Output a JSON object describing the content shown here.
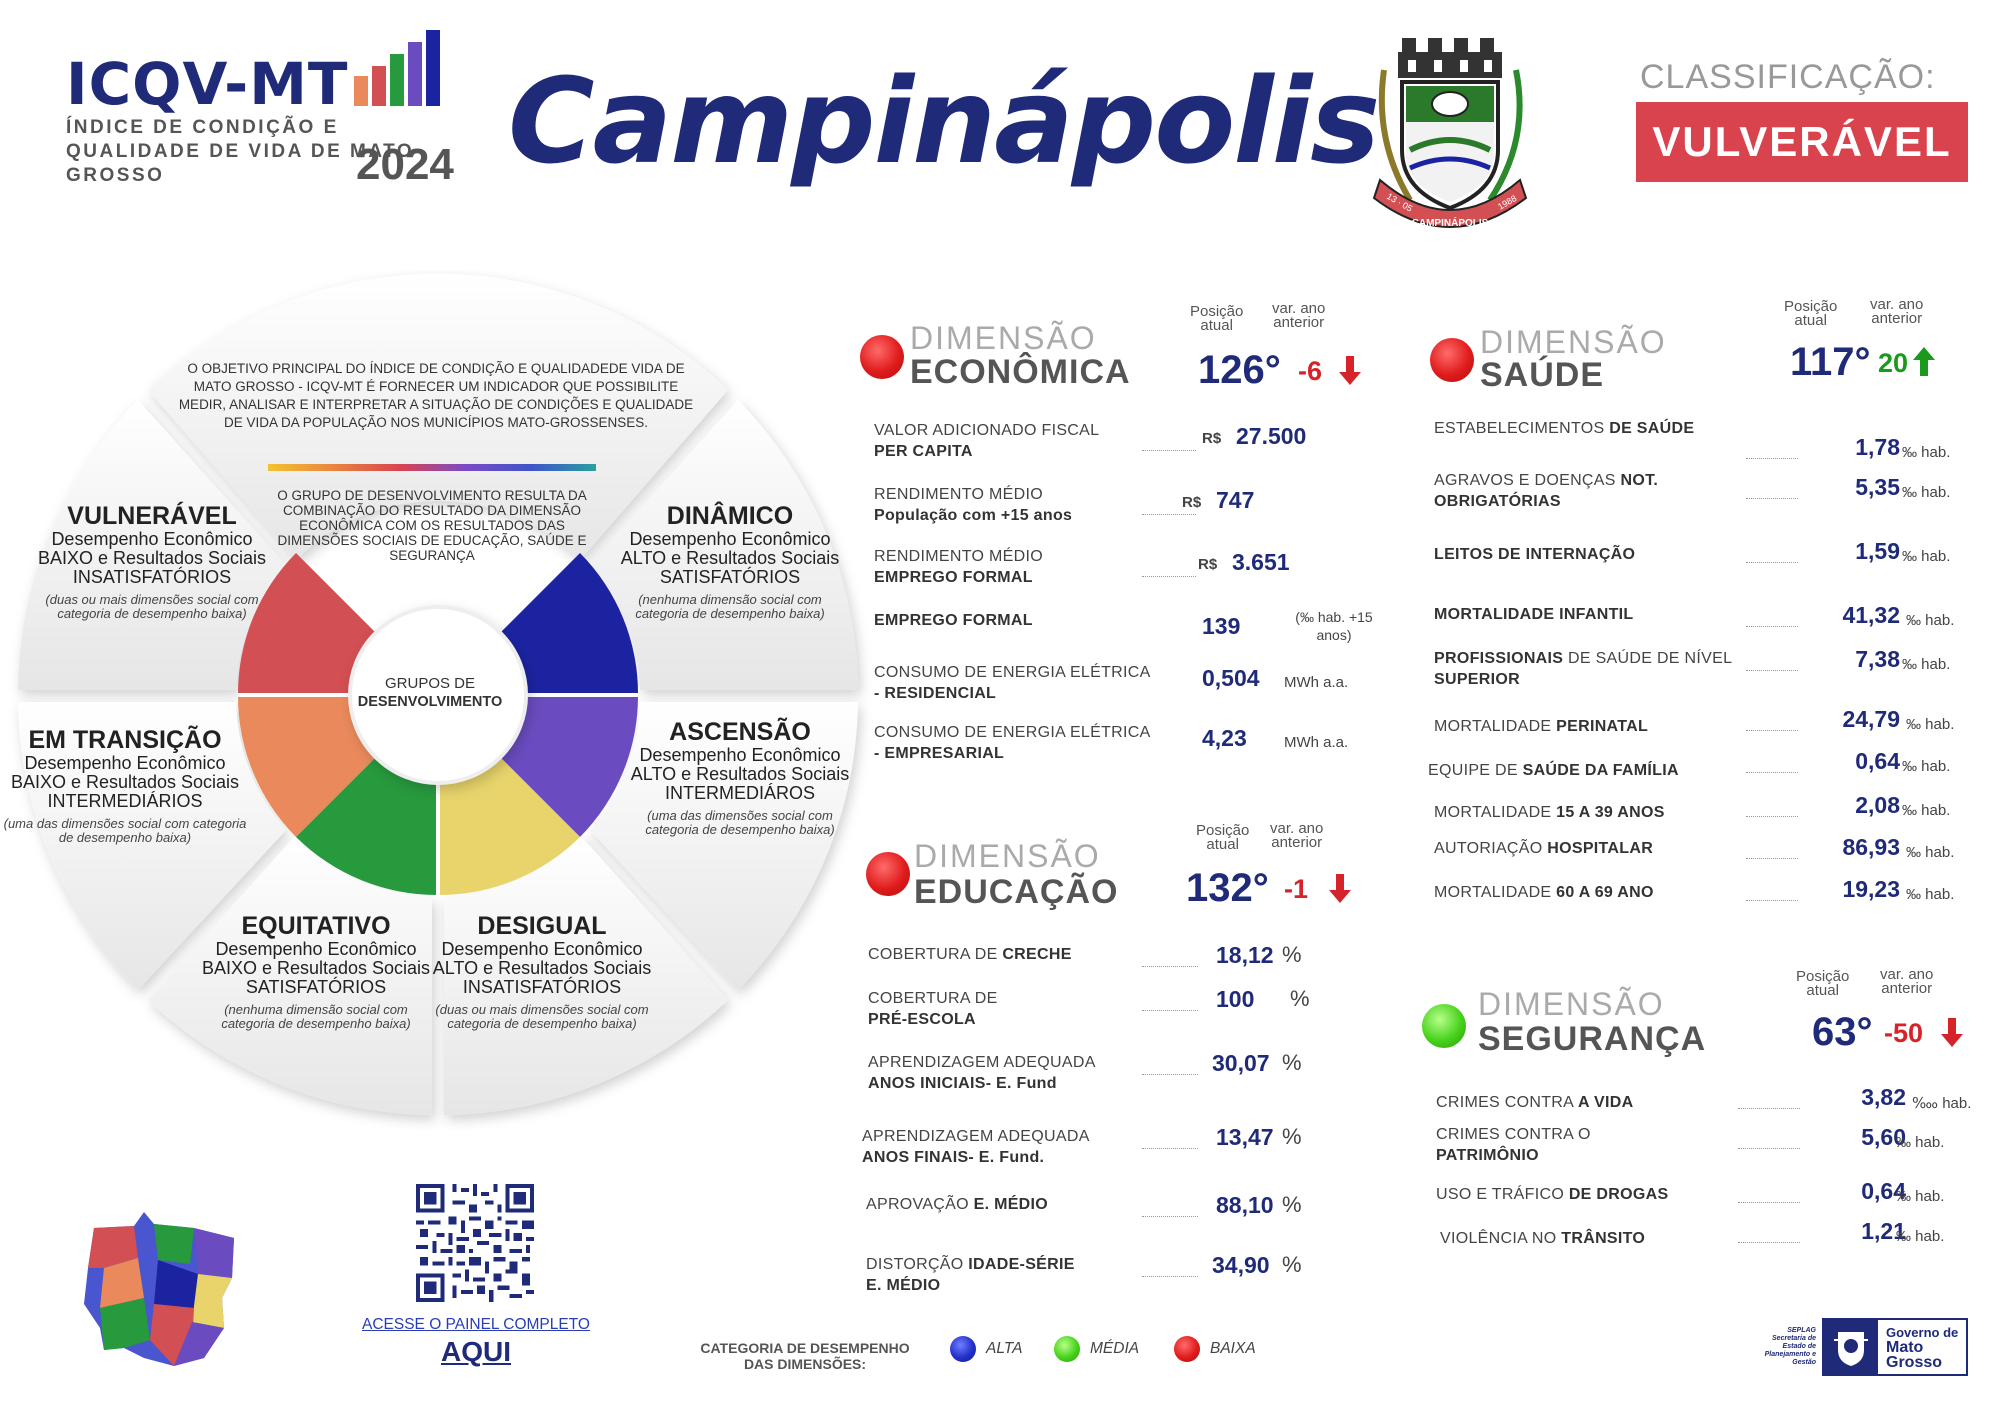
{
  "header": {
    "brand": "ICQV-MT",
    "subtitle": "ÍNDICE DE CONDIÇÃO E QUALIDADE DE VIDA DE MATO GROSSO",
    "year": "2024",
    "city": "Campinápolis",
    "crest_text": "CAMPINÁPOLIS",
    "crest_date_left": "13 · 05",
    "crest_date_right": "1988",
    "classification_label": "CLASSIFICAÇÃO:",
    "classification_value": "VULVERÁVEL",
    "colors": {
      "navy": "#1f2a78",
      "classification_bg": "#d9434e"
    }
  },
  "wheel": {
    "objective": "O OBJETIVO PRINCIPAL DO ÍNDICE DE CONDIÇÃO E QUALIDADEDE VIDA DE MATO GROSSO - ICQV-MT É FORNECER UM INDICADOR QUE POSSIBILITE MEDIR, ANALISAR E INTERPRETAR A SITUAÇÃO DE CONDIÇÕES E QUALIDADE DE VIDA DA POPULAÇÃO NOS MUNICÍPIOS MATO-GROSSENSES.",
    "group_explanation": "O GRUPO DE DESENVOLVIMENTO RESULTA DA COMBINAÇÃO DO RESULTADO DA DIMENSÃO ECONÔMICA COM OS RESULTADOS DAS DIMENSÕES SOCIAIS DE EDUCAÇÃO, SAÚDE E SEGURANÇA",
    "center_line1": "GRUPOS DE",
    "center_line2": "DESENVOLVIMENTO",
    "groups": [
      {
        "key": "vulneravel",
        "title": "VULNERÁVEL",
        "desc": "Desempenho Econômico BAIXO e Resultados Sociais INSATISFATÓRIOS",
        "note": "(duas ou mais dimensões social com categoria de desempenho baixa)",
        "color": "#d24f53"
      },
      {
        "key": "dinamico",
        "title": "DINÂMICO",
        "desc": "Desempenho Econômico ALTO e Resultados Sociais SATISFATÓRIOS",
        "note": "(nenhuma dimensão social com categoria de desempenho baixa)",
        "color": "#1c23a1"
      },
      {
        "key": "transicao",
        "title": "EM TRANSIÇÃO",
        "desc": "Desempenho Econômico BAIXO e Resultados Sociais INTERMEDIÁRIOS",
        "note": "(uma das dimensões social com categoria de desempenho baixa)",
        "color": "#ea8a5c"
      },
      {
        "key": "ascensao",
        "title": "ASCENSÃO",
        "desc": "Desempenho Econômico ALTO e Resultados Sociais INTERMEDIÁROS",
        "note": "(uma das dimensões social com categoria de desempenho baixa)",
        "color": "#6a4cc0"
      },
      {
        "key": "equitativo",
        "title": "EQUITATIVO",
        "desc": "Desempenho Econômico BAIXO e Resultados Sociais SATISFATÓRIOS",
        "note": "(nenhuma dimensão social com categoria de desempenho baixa)",
        "color": "#279a3d"
      },
      {
        "key": "desigual",
        "title": "DESIGUAL",
        "desc": "Desempenho Econômico ALTO e Resultados Sociais INSATISFATÓRIOS",
        "note": "(duas ou mais dimensões social com categoria de desempenho baixa)",
        "color": "#e8d46b"
      }
    ]
  },
  "dimensions": {
    "pos_label_1": "Posição",
    "pos_label_2": "atual",
    "var_label_1": "var. ano",
    "var_label_2": "anterior",
    "dim_word": "DIMENSÃO",
    "economica": {
      "name": "ECONÔMICA",
      "rank": "126°",
      "var": "-6",
      "var_dir": "down",
      "category": "BAIXA",
      "items": [
        {
          "l1": "VALOR ADICIONADO FISCAL",
          "l2": "PER CAPITA",
          "prefix": "R$",
          "value": "27.500",
          "unit": ""
        },
        {
          "l1": "RENDIMENTO MÉDIO",
          "l2": "População com +15 anos",
          "prefix": "R$",
          "value": "747",
          "unit": ""
        },
        {
          "l1": "RENDIMENTO MÉDIO",
          "l2": "EMPREGO FORMAL",
          "prefix": "R$",
          "value": "3.651",
          "unit": ""
        },
        {
          "l1": "EMPREGO FORMAL",
          "l2": "",
          "prefix": "",
          "value": "139",
          "unit": "(‰ hab. +15 anos)"
        },
        {
          "l1": "CONSUMO DE ENERGIA ELÉTRICA",
          "l2": "- RESIDENCIAL",
          "prefix": "",
          "value": "0,504",
          "unit": "MWh a.a."
        },
        {
          "l1": "CONSUMO DE ENERGIA ELÉTRICA",
          "l2": "- EMPRESARIAL",
          "prefix": "",
          "value": "4,23",
          "unit": "MWh a.a."
        }
      ]
    },
    "educacao": {
      "name": "EDUCAÇÃO",
      "rank": "132°",
      "var": "-1",
      "var_dir": "down",
      "category": "BAIXA",
      "items": [
        {
          "l1": "COBERTURA DE",
          "l1b": "CRECHE",
          "l2": "",
          "value": "18,12",
          "unit": "%"
        },
        {
          "l1": "COBERTURA DE",
          "l1b": "",
          "l2": "PRÉ-ESCOLA",
          "value": "100",
          "unit": "%"
        },
        {
          "l1": "APRENDIZAGEM ADEQUADA",
          "l1b": "",
          "l2": "ANOS INICIAIS- E. Fund",
          "value": "30,07",
          "unit": "%"
        },
        {
          "l1": "APRENDIZAGEM ADEQUADA",
          "l1b": "",
          "l2": "ANOS FINAIS- E. Fund.",
          "value": "13,47",
          "unit": "%"
        },
        {
          "l1": "APROVAÇÃO",
          "l1b": "E. MÉDIO",
          "l2": "",
          "value": "88,10",
          "unit": "%"
        },
        {
          "l1": "DISTORÇÃO",
          "l1b": "IDADE-SÉRIE",
          "l2": "E. MÉDIO",
          "value": "34,90",
          "unit": "%"
        }
      ]
    },
    "saude": {
      "name": "SAÚDE",
      "rank": "117°",
      "var": "20",
      "var_dir": "up",
      "category": "BAIXA",
      "items": [
        {
          "pre": "ESTABELECIMENTOS",
          "bold": "DE SAÚDE",
          "post": "",
          "l2": "",
          "value": "1,78",
          "unit": "‰ hab."
        },
        {
          "pre": "AGRAVOS E DOENÇAS",
          "bold": "NOT.",
          "post": "",
          "l2": "OBRIGATÓRIAS",
          "value": "5,35",
          "unit": "‰ hab."
        },
        {
          "pre": "",
          "bold": "LEITOS DE INTERNAÇÃO",
          "post": "",
          "l2": "",
          "value": "1,59",
          "unit": "‰ hab."
        },
        {
          "pre": "",
          "bold": "MORTALIDADE INFANTIL",
          "post": "",
          "l2": "",
          "value": "41,32",
          "unit": "‰ hab."
        },
        {
          "pre": "",
          "bold": "PROFISSIONAIS",
          "post": "DE SAÚDE DE NÍVEL",
          "l2": "SUPERIOR",
          "value": "7,38",
          "unit": "‰ hab."
        },
        {
          "pre": "MORTALIDADE",
          "bold": "PERINATAL",
          "post": "",
          "l2": "",
          "value": "24,79",
          "unit": "‰ hab."
        },
        {
          "pre": "EQUIPE DE",
          "bold": "SAÚDE DA FAMÍLIA",
          "post": "",
          "l2": "",
          "value": "0,64",
          "unit": "‰ hab."
        },
        {
          "pre": "MORTALIDADE",
          "bold": "15 A 39 ANOS",
          "post": "",
          "l2": "",
          "value": "2,08",
          "unit": "‰ hab."
        },
        {
          "pre": "AUTORIAÇÃO",
          "bold": "HOSPITALAR",
          "post": "",
          "l2": "",
          "value": "86,93",
          "unit": "‰ hab."
        },
        {
          "pre": "MORTALIDADE",
          "bold": "60 A 69 ANO",
          "post": "",
          "l2": "",
          "value": "19,23",
          "unit": "‰ hab."
        }
      ]
    },
    "seguranca": {
      "name": "SEGURANÇA",
      "rank": "63°",
      "var": "-50",
      "var_dir": "down",
      "category": "MÉDIA",
      "items": [
        {
          "pre": "CRIMES CONTRA",
          "bold": "A VIDA",
          "l2": "",
          "value": "3,82",
          "unit": "‱ hab."
        },
        {
          "pre": "CRIMES CONTRA O",
          "bold": "",
          "l2": "PATRIMÔNIO",
          "value": "5,60",
          "unit": "‰ hab."
        },
        {
          "pre": "USO E TRÁFICO",
          "bold": "DE DROGAS",
          "l2": "",
          "value": "0,64",
          "unit": "‰ hab."
        },
        {
          "pre": "VIOLÊNCIA NO",
          "bold": "TRÂNSITO",
          "l2": "",
          "value": "1,21",
          "unit": "‰ hab."
        }
      ]
    }
  },
  "footer": {
    "access_link": "ACESSE O PAINEL COMPLETO",
    "here": "AQUI",
    "category_title_1": "CATEGORIA DE DESEMPENHO",
    "category_title_2": "DAS DIMENSÕES:",
    "legend": [
      {
        "label": "ALTA",
        "color": "#2230c8"
      },
      {
        "label": "MÉDIA",
        "color": "#47d21c"
      },
      {
        "label": "BAIXA",
        "color": "#e01c1c"
      }
    ],
    "seplag": "SEPLAG Secretaria de Estado de Planejamento e Gestão",
    "gov_1": "Governo de",
    "gov_2": "Mato",
    "gov_3": "Grosso"
  }
}
